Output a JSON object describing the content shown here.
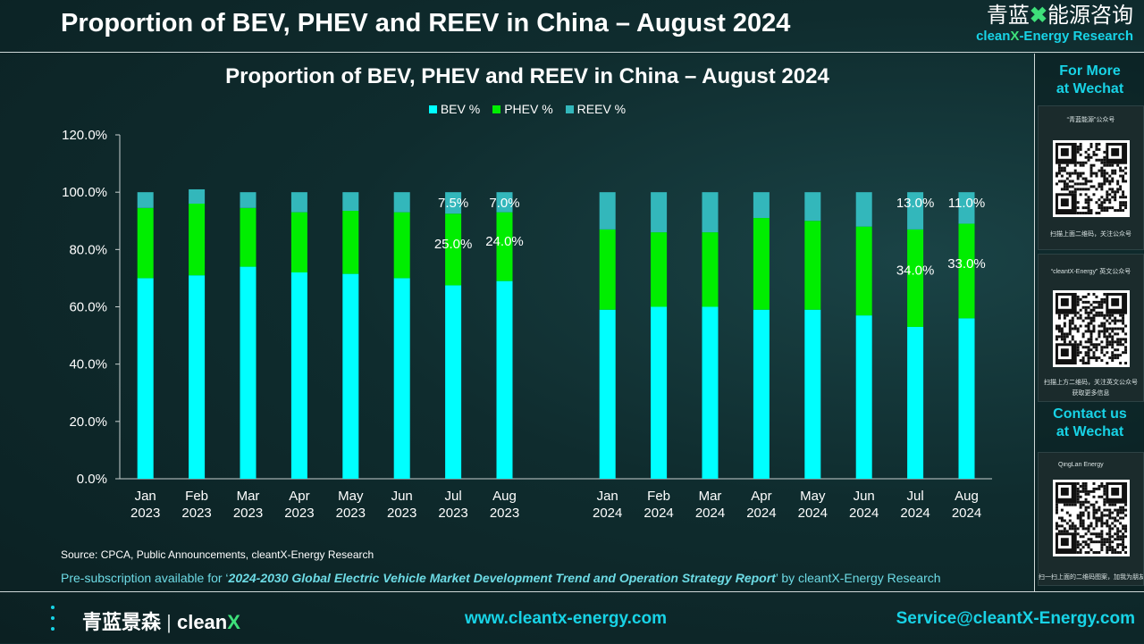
{
  "header": {
    "title": "Proportion of BEV, PHEV and REEV in China – August 2024",
    "brand_cn_1": "青蓝",
    "brand_cn_2": "能源咨询",
    "brand_en_1": "clean",
    "brand_en_x": "X",
    "brand_en_2": "-Energy Research"
  },
  "sidebar": {
    "more_line1": "For More",
    "more_line2": "at Wechat",
    "card1_caption": "“青蓝能源”公众号",
    "card1_foot": "扫描上面二维码，关注公众号",
    "card2_caption": "“cleantX-Energy” 英文公众号",
    "card2_foot": "扫描上方二维码，关注英文公众号",
    "card2_foot2": "获取更多信息",
    "contact_line1": "Contact us",
    "contact_line2": "at Wechat",
    "card3_caption": "QingLan Energy",
    "card3_foot": "扫一扫上面的二维码图案，加我为朋友。"
  },
  "colors": {
    "bev": "#00ffff",
    "phev": "#00ee00",
    "reev": "#33b7bb",
    "accent": "#18d3e6"
  },
  "chart_data": {
    "type": "bar",
    "stacked": true,
    "title": "Proportion of BEV, PHEV and REEV in China – August 2024",
    "xlabel": "",
    "ylabel": "",
    "ylim": [
      0,
      120
    ],
    "yticks": [
      "0.0%",
      "20.0%",
      "40.0%",
      "60.0%",
      "80.0%",
      "100.0%",
      "120.0%"
    ],
    "legend_position": "top",
    "groups": [
      {
        "categories": [
          [
            "Jan",
            "2023"
          ],
          [
            "Feb",
            "2023"
          ],
          [
            "Mar",
            "2023"
          ],
          [
            "Apr",
            "2023"
          ],
          [
            "May",
            "2023"
          ],
          [
            "Jun",
            "2023"
          ],
          [
            "Jul",
            "2023"
          ],
          [
            "Aug",
            "2023"
          ]
        ],
        "series": [
          {
            "name": "BEV %",
            "values": [
              70,
              71,
              74,
              72,
              71.5,
              70,
              67.5,
              69
            ]
          },
          {
            "name": "PHEV %",
            "values": [
              24.5,
              25,
              20.5,
              21,
              22,
              23,
              25,
              24
            ]
          },
          {
            "name": "REEV %",
            "values": [
              5.5,
              5,
              5.5,
              7,
              6.5,
              7,
              7.5,
              7
            ]
          }
        ]
      },
      {
        "categories": [
          [
            "Jan",
            "2024"
          ],
          [
            "Feb",
            "2024"
          ],
          [
            "Mar",
            "2024"
          ],
          [
            "Apr",
            "2024"
          ],
          [
            "May",
            "2024"
          ],
          [
            "Jun",
            "2024"
          ],
          [
            "Jul",
            "2024"
          ],
          [
            "Aug",
            "2024"
          ]
        ],
        "series": [
          {
            "name": "BEV %",
            "values": [
              59,
              60,
              60,
              59,
              59,
              57,
              53,
              56
            ]
          },
          {
            "name": "PHEV %",
            "values": [
              28,
              26,
              26,
              32,
              31,
              31,
              34,
              33
            ]
          },
          {
            "name": "REEV %",
            "values": [
              13,
              14,
              14,
              9,
              10,
              12,
              13,
              11
            ]
          }
        ]
      }
    ],
    "annotations": [
      {
        "group": 0,
        "index": 6,
        "series": "REEV %",
        "text": "7.5%"
      },
      {
        "group": 0,
        "index": 6,
        "series": "PHEV %",
        "text": "25.0%"
      },
      {
        "group": 0,
        "index": 7,
        "series": "REEV %",
        "text": "7.0%"
      },
      {
        "group": 0,
        "index": 7,
        "series": "PHEV %",
        "text": "24.0%"
      },
      {
        "group": 1,
        "index": 6,
        "series": "REEV %",
        "text": "13.0%"
      },
      {
        "group": 1,
        "index": 6,
        "series": "PHEV %",
        "text": "34.0%"
      },
      {
        "group": 1,
        "index": 7,
        "series": "REEV %",
        "text": "11.0%"
      },
      {
        "group": 1,
        "index": 7,
        "series": "PHEV %",
        "text": "33.0%"
      }
    ]
  },
  "notes": {
    "source": "Source: CPCA, Public Announcements, cleantX-Energy Research",
    "presub_prefix": "Pre-subscription available for ‘",
    "presub_report": "2024-2030 Global Electric Vehicle Market Development Trend and Operation Strategy Report",
    "presub_suffix": "’ by cleantX-Energy Research"
  },
  "footer": {
    "logo_cn": "青蓝景森",
    "logo_en": "clean",
    "logo_x": "X",
    "website": "www.cleantx-energy.com",
    "email": "Service@cleantX-Energy.com"
  }
}
